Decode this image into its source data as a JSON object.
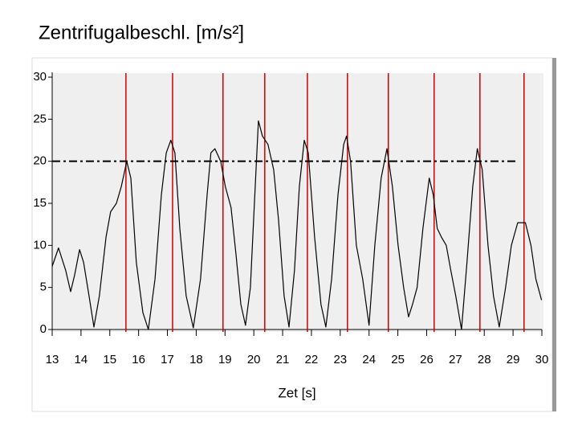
{
  "chart_data": {
    "type": "line",
    "title": "Zentrifugalbeschl. [m/s²]",
    "xlabel": "Zet [s]",
    "xlim": [
      13,
      30
    ],
    "ylim": [
      0,
      30
    ],
    "xticks": [
      13,
      14,
      15,
      16,
      17,
      18,
      19,
      20,
      21,
      22,
      23,
      24,
      25,
      26,
      27,
      28,
      29,
      30
    ],
    "yticks": [
      0,
      5,
      10,
      15,
      20,
      25,
      30
    ],
    "x": [
      13.0,
      13.22,
      13.47,
      13.64,
      13.78,
      13.95,
      14.09,
      14.28,
      14.45,
      14.64,
      14.87,
      15.03,
      15.23,
      15.4,
      15.59,
      15.73,
      15.92,
      16.15,
      16.34,
      16.57,
      16.79,
      16.96,
      17.12,
      17.26,
      17.43,
      17.65,
      17.9,
      18.15,
      18.38,
      18.51,
      18.65,
      18.85,
      19.01,
      19.21,
      19.38,
      19.55,
      19.71,
      19.88,
      20.02,
      20.16,
      20.3,
      20.49,
      20.69,
      20.86,
      21.05,
      21.22,
      21.41,
      21.58,
      21.75,
      21.89,
      22.11,
      22.33,
      22.5,
      22.7,
      22.92,
      23.12,
      23.22,
      23.36,
      23.56,
      23.78,
      24.0,
      24.2,
      24.42,
      24.62,
      24.81,
      25.01,
      25.2,
      25.37,
      25.51,
      25.67,
      25.87,
      26.09,
      26.23,
      26.37,
      26.51,
      26.68,
      26.84,
      27.01,
      27.21,
      27.4,
      27.6,
      27.76,
      27.93,
      28.13,
      28.32,
      28.52,
      28.74,
      28.94,
      29.16,
      29.43,
      29.62,
      29.79,
      29.99
    ],
    "series": [
      {
        "color": "#000000",
        "values": [
          7.5,
          9.7,
          7,
          4.5,
          6.5,
          9.5,
          8,
          4,
          0.3,
          4,
          11,
          14,
          15,
          17,
          20,
          18,
          8,
          2,
          0,
          6,
          16,
          21,
          22.5,
          21,
          12,
          4,
          0.2,
          6,
          16,
          21,
          21.5,
          20,
          17,
          14.5,
          9,
          3,
          0.5,
          5,
          15,
          24.8,
          23,
          22,
          19,
          13,
          4,
          0.3,
          7,
          17,
          22.5,
          21,
          11,
          3,
          0.3,
          6,
          16,
          22,
          23,
          20,
          10,
          6,
          0.5,
          10,
          18,
          21.5,
          17,
          10,
          5,
          1.5,
          3,
          5,
          12,
          18,
          16,
          12,
          11,
          10,
          7,
          4,
          0,
          8,
          17,
          21.5,
          19,
          10,
          4,
          0.3,
          5,
          10,
          12.7,
          12.7,
          10,
          6,
          3.5
        ]
      }
    ],
    "markers": {
      "color": "#d00000",
      "x": [
        15.56,
        17.18,
        18.93,
        20.38,
        21.86,
        23.25,
        24.67,
        26.26,
        27.85,
        29.38
      ]
    },
    "threshold": {
      "y": 20,
      "x_end": 29.16,
      "color": "#000000"
    }
  }
}
